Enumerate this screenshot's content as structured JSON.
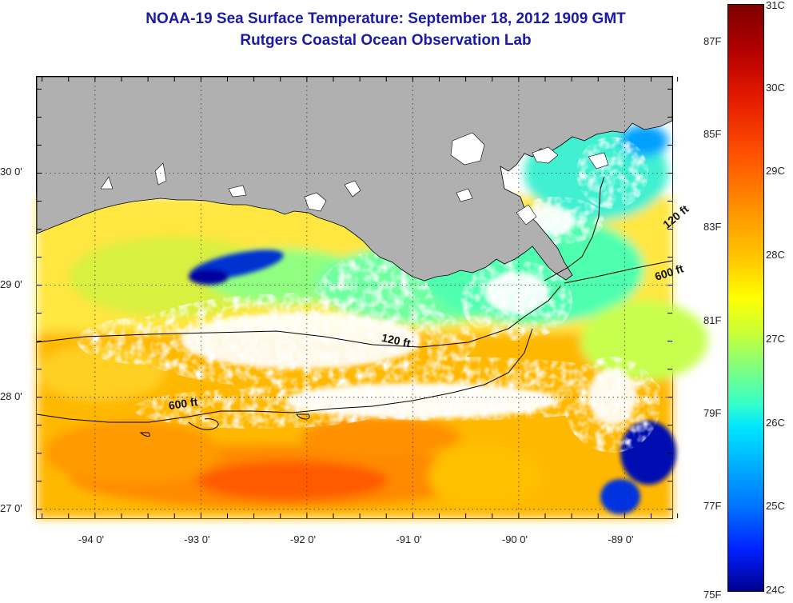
{
  "header": {
    "title": "NOAA-19 Sea Surface Temperature:  September 18, 2012 1909 GMT",
    "subtitle": "Rutgers Coastal Ocean Observation Lab"
  },
  "map": {
    "lat_labels": [
      {
        "value": 30,
        "text": "30 0'"
      },
      {
        "value": 29,
        "text": "29 0'"
      },
      {
        "value": 28,
        "text": "28 0'"
      },
      {
        "value": 27,
        "text": "27 0'"
      }
    ],
    "lon_labels": [
      {
        "value": -94,
        "text": "-94 0'"
      },
      {
        "value": -93,
        "text": "-93 0'"
      },
      {
        "value": -92,
        "text": "-92 0'"
      },
      {
        "value": -91,
        "text": "-91 0'"
      },
      {
        "value": -90,
        "text": "-90 0'"
      },
      {
        "value": -89,
        "text": "-89 0'"
      }
    ],
    "contour_labels": [
      {
        "text": "120 ft",
        "lon": -88.6,
        "lat": 29.5
      },
      {
        "text": "600 ft",
        "lon": -88.7,
        "lat": 29.04
      },
      {
        "text": "120 ft",
        "lon": -91.3,
        "lat": 28.5
      },
      {
        "text": "600 ft",
        "lon": -93.3,
        "lat": 27.89
      }
    ],
    "colors": {
      "land": "#b0b0b0",
      "cloud": "#ffffff",
      "gridline": "#333333"
    }
  },
  "colorbar": {
    "celsius": [
      "31C",
      "30C",
      "29C",
      "28C",
      "27C",
      "26C",
      "25C",
      "24C"
    ],
    "fahrenheit": [
      "87F",
      "85F",
      "83F",
      "81F",
      "79F",
      "77F",
      "75F"
    ]
  }
}
